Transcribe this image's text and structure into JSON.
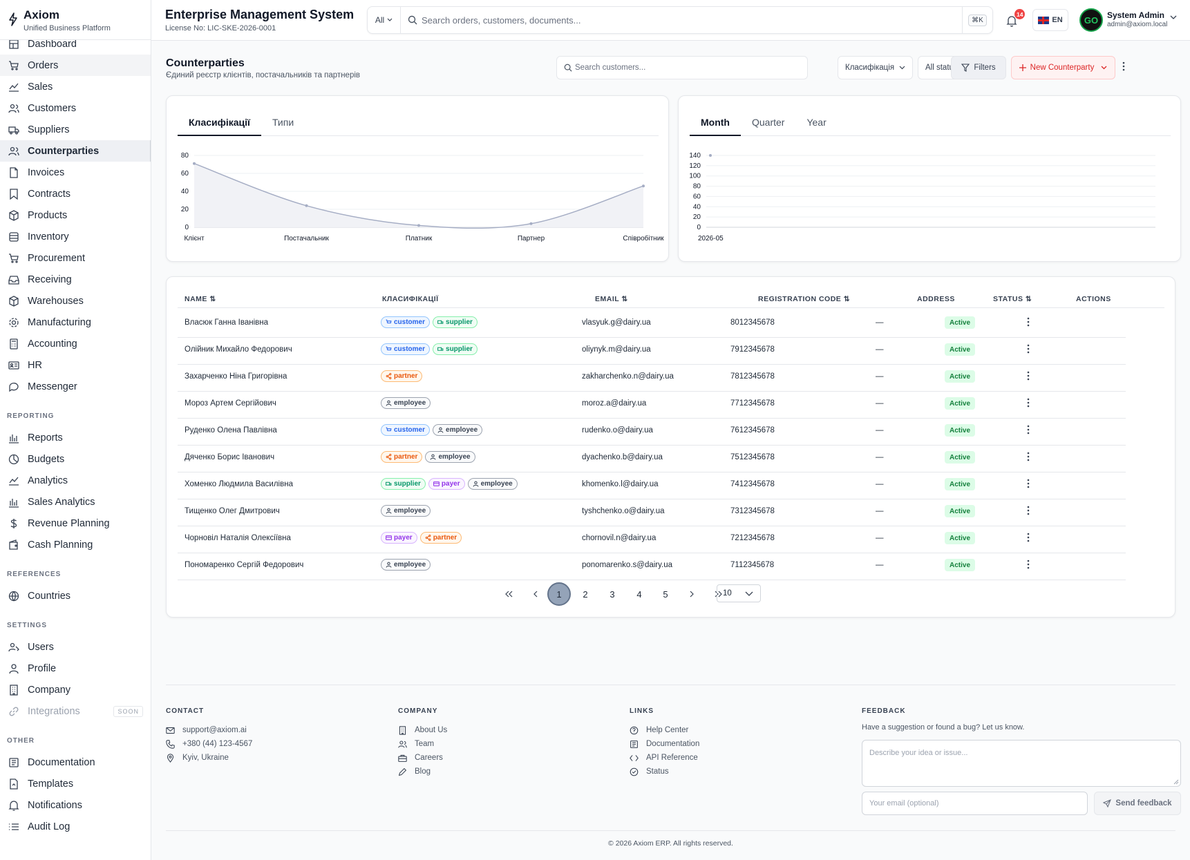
{
  "brand": {
    "name": "Axiom",
    "subtitle": "Unified Business Platform"
  },
  "header": {
    "title": "Enterprise Management System",
    "license": "License No: LIC-SKE-2026-0001"
  },
  "global_search": {
    "scope": "All",
    "placeholder": "Search orders, customers, documents...",
    "shortcut": "⌘K"
  },
  "notifications": {
    "count": "14"
  },
  "language": {
    "code": "EN"
  },
  "user": {
    "name": "System Admin",
    "email": "admin@axiom.local",
    "avatar_text": "GO"
  },
  "sidebar": {
    "main_items": [
      {
        "label": "Dashboard",
        "icon": "dashboard-icon"
      },
      {
        "label": "Orders",
        "icon": "cart-icon"
      },
      {
        "label": "Sales",
        "icon": "trend-icon"
      },
      {
        "label": "Customers",
        "icon": "users-icon"
      },
      {
        "label": "Suppliers",
        "icon": "truck-icon"
      },
      {
        "label": "Counterparties",
        "icon": "users-icon"
      },
      {
        "label": "Invoices",
        "icon": "file-icon"
      },
      {
        "label": "Contracts",
        "icon": "bookmark-icon"
      },
      {
        "label": "Products",
        "icon": "box-icon"
      },
      {
        "label": "Inventory",
        "icon": "database-icon"
      },
      {
        "label": "Procurement",
        "icon": "cart-icon"
      },
      {
        "label": "Receiving",
        "icon": "inbox-icon"
      },
      {
        "label": "Warehouses",
        "icon": "box-icon"
      },
      {
        "label": "Manufacturing",
        "icon": "gear-icon"
      },
      {
        "label": "Accounting",
        "icon": "calculator-icon"
      },
      {
        "label": "HR",
        "icon": "id-card-icon"
      },
      {
        "label": "Messenger",
        "icon": "chat-icon"
      }
    ],
    "sections": {
      "reporting": "REPORTING",
      "references": "REFERENCES",
      "settings": "SETTINGS",
      "other": "OTHER"
    },
    "reporting_items": [
      {
        "label": "Reports",
        "icon": "bar-chart-icon"
      },
      {
        "label": "Budgets",
        "icon": "pie-chart-icon"
      },
      {
        "label": "Analytics",
        "icon": "trend-icon"
      },
      {
        "label": "Sales Analytics",
        "icon": "bar-chart-icon"
      },
      {
        "label": "Revenue Planning",
        "icon": "dollar-icon"
      },
      {
        "label": "Cash Planning",
        "icon": "wallet-icon"
      }
    ],
    "references_items": [
      {
        "label": "Countries",
        "icon": "globe-icon"
      }
    ],
    "settings_items": [
      {
        "label": "Users",
        "icon": "user-cog-icon"
      },
      {
        "label": "Profile",
        "icon": "user-icon"
      },
      {
        "label": "Company",
        "icon": "building-icon"
      },
      {
        "label": "Integrations",
        "icon": "link-icon",
        "badge": "SOON"
      }
    ],
    "other_items": [
      {
        "label": "Documentation",
        "icon": "book-icon"
      },
      {
        "label": "Templates",
        "icon": "template-icon"
      },
      {
        "label": "Notifications",
        "icon": "bell-icon"
      },
      {
        "label": "Audit Log",
        "icon": "list-icon"
      }
    ]
  },
  "page": {
    "title": "Counterparties",
    "subtitle": "Єдиний реєстр клієнтів, постачальників та партнерів",
    "search_placeholder": "Search customers...",
    "classification_filter": "Класифікація",
    "status_filter": "All statuses",
    "filters_label": "Filters",
    "new_label": "New Counterparty"
  },
  "chart_left": {
    "tabs": [
      "Класифікації",
      "Типи"
    ],
    "active_tab": "Класифікації",
    "chart_data": {
      "type": "area",
      "categories": [
        "Клієнт",
        "Постачальник",
        "Платник",
        "Партнер",
        "Співробітник"
      ],
      "values": [
        71,
        24,
        2,
        4,
        46
      ],
      "ylim": [
        0,
        80
      ],
      "yticks": [
        "0",
        "20",
        "40",
        "60",
        "80"
      ],
      "grid": true
    }
  },
  "chart_right": {
    "tabs": [
      "Month",
      "Quarter",
      "Year"
    ],
    "active_tab": "Month",
    "chart_data": {
      "type": "line",
      "categories": [
        "2026-05"
      ],
      "values": [
        140
      ],
      "ylim": [
        0,
        140
      ],
      "yticks": [
        "0",
        "20",
        "40",
        "60",
        "80",
        "100",
        "120",
        "140"
      ],
      "grid": true
    }
  },
  "table": {
    "columns": {
      "name": "NAME",
      "class": "КЛАСИФІКАЦІЇ",
      "email": "EMAIL",
      "code": "REGISTRATION CODE",
      "address": "ADDRESS",
      "status": "STATUS",
      "actions": "ACTIONS"
    },
    "rows": [
      {
        "name": "Власюк Ганна Іванівна",
        "tags": [
          "customer",
          "supplier"
        ],
        "email": "vlasyuk.g@dairy.ua",
        "code": "8012345678",
        "address": "—",
        "status": "Active"
      },
      {
        "name": "Олійник Михайло Федорович",
        "tags": [
          "customer",
          "supplier"
        ],
        "email": "oliynyk.m@dairy.ua",
        "code": "7912345678",
        "address": "—",
        "status": "Active"
      },
      {
        "name": "Захарченко Ніна Григорівна",
        "tags": [
          "partner"
        ],
        "email": "zakharchenko.n@dairy.ua",
        "code": "7812345678",
        "address": "—",
        "status": "Active"
      },
      {
        "name": "Мороз Артем Сергійович",
        "tags": [
          "employee"
        ],
        "email": "moroz.a@dairy.ua",
        "code": "7712345678",
        "address": "—",
        "status": "Active"
      },
      {
        "name": "Руденко Олена Павлівна",
        "tags": [
          "customer",
          "employee"
        ],
        "email": "rudenko.o@dairy.ua",
        "code": "7612345678",
        "address": "—",
        "status": "Active"
      },
      {
        "name": "Дяченко Борис Іванович",
        "tags": [
          "partner",
          "employee"
        ],
        "email": "dyachenko.b@dairy.ua",
        "code": "7512345678",
        "address": "—",
        "status": "Active"
      },
      {
        "name": "Хоменко Людмила Василівна",
        "tags": [
          "supplier",
          "payer",
          "employee"
        ],
        "email": "khomenko.l@dairy.ua",
        "code": "7412345678",
        "address": "—",
        "status": "Active"
      },
      {
        "name": "Тищенко Олег Дмитрович",
        "tags": [
          "employee"
        ],
        "email": "tyshchenko.o@dairy.ua",
        "code": "7312345678",
        "address": "—",
        "status": "Active"
      },
      {
        "name": "Чорновіл Наталія Олексіївна",
        "tags": [
          "payer",
          "partner"
        ],
        "email": "chornovil.n@dairy.ua",
        "code": "7212345678",
        "address": "—",
        "status": "Active"
      },
      {
        "name": "Пономаренко Сергій Федорович",
        "tags": [
          "employee"
        ],
        "email": "ponomarenko.s@dairy.ua",
        "code": "7112345678",
        "address": "—",
        "status": "Active"
      }
    ]
  },
  "pagination": {
    "pages": [
      "1",
      "2",
      "3",
      "4",
      "5"
    ],
    "current": "1",
    "page_size": "10"
  },
  "footer": {
    "contact_title": "CONTACT",
    "contact": [
      {
        "label": "support@axiom.ai",
        "icon": "mail-icon"
      },
      {
        "label": "+380 (44) 123-4567",
        "icon": "phone-icon"
      },
      {
        "label": "Kyiv, Ukraine",
        "icon": "pin-icon"
      }
    ],
    "company_title": "COMPANY",
    "company": [
      {
        "label": "About Us",
        "icon": "building-icon"
      },
      {
        "label": "Team",
        "icon": "users-icon"
      },
      {
        "label": "Careers",
        "icon": "briefcase-icon"
      },
      {
        "label": "Blog",
        "icon": "pen-icon"
      }
    ],
    "links_title": "LINKS",
    "links": [
      {
        "label": "Help Center",
        "icon": "help-icon"
      },
      {
        "label": "Documentation",
        "icon": "book-icon"
      },
      {
        "label": "API Reference",
        "icon": "code-icon"
      },
      {
        "label": "Status",
        "icon": "check-circle-icon"
      }
    ],
    "feedback_title": "FEEDBACK",
    "feedback_note": "Have a suggestion or found a bug? Let us know.",
    "feedback_placeholder": "Describe your idea or issue...",
    "email_placeholder": "Your email (optional)",
    "send_label": "Send feedback",
    "copyright": "© 2026 Axiom ERP. All rights reserved."
  },
  "colors": {
    "accent": "#111827",
    "danger": "#dc2626",
    "success": "#15803d",
    "chart_line": "#a5adc4"
  }
}
